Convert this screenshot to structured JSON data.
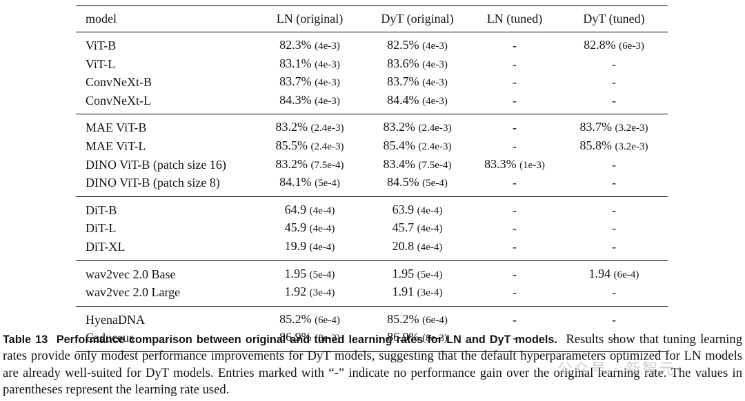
{
  "table": {
    "headers": [
      "model",
      "LN (original)",
      "DyT (original)",
      "LN (tuned)",
      "DyT (tuned)"
    ],
    "groups": [
      {
        "rows": [
          {
            "model": "ViT-B",
            "ln_orig": {
              "v": "82.3%",
              "lr": "(4e-3)"
            },
            "dyt_orig": {
              "v": "82.5%",
              "lr": "(4e-3)"
            },
            "ln_tuned": {
              "v": "-",
              "lr": ""
            },
            "dyt_tuned": {
              "v": "82.8%",
              "lr": "(6e-3)"
            }
          },
          {
            "model": "ViT-L",
            "ln_orig": {
              "v": "83.1%",
              "lr": "(4e-3)"
            },
            "dyt_orig": {
              "v": "83.6%",
              "lr": "(4e-3)"
            },
            "ln_tuned": {
              "v": "-",
              "lr": ""
            },
            "dyt_tuned": {
              "v": "-",
              "lr": ""
            }
          },
          {
            "model": "ConvNeXt-B",
            "ln_orig": {
              "v": "83.7%",
              "lr": "(4e-3)"
            },
            "dyt_orig": {
              "v": "83.7%",
              "lr": "(4e-3)"
            },
            "ln_tuned": {
              "v": "-",
              "lr": ""
            },
            "dyt_tuned": {
              "v": "-",
              "lr": ""
            }
          },
          {
            "model": "ConvNeXt-L",
            "ln_orig": {
              "v": "84.3%",
              "lr": "(4e-3)"
            },
            "dyt_orig": {
              "v": "84.4%",
              "lr": "(4e-3)"
            },
            "ln_tuned": {
              "v": "-",
              "lr": ""
            },
            "dyt_tuned": {
              "v": "-",
              "lr": ""
            }
          }
        ]
      },
      {
        "rows": [
          {
            "model": "MAE ViT-B",
            "ln_orig": {
              "v": "83.2%",
              "lr": "(2.4e-3)"
            },
            "dyt_orig": {
              "v": "83.2%",
              "lr": "(2.4e-3)"
            },
            "ln_tuned": {
              "v": "-",
              "lr": ""
            },
            "dyt_tuned": {
              "v": "83.7%",
              "lr": "(3.2e-3)"
            }
          },
          {
            "model": "MAE ViT-L",
            "ln_orig": {
              "v": "85.5%",
              "lr": "(2.4e-3)"
            },
            "dyt_orig": {
              "v": "85.4%",
              "lr": "(2.4e-3)"
            },
            "ln_tuned": {
              "v": "-",
              "lr": ""
            },
            "dyt_tuned": {
              "v": "85.8%",
              "lr": "(3.2e-3)"
            }
          },
          {
            "model": "DINO ViT-B (patch size 16)",
            "ln_orig": {
              "v": "83.2%",
              "lr": "(7.5e-4)"
            },
            "dyt_orig": {
              "v": "83.4%",
              "lr": "(7.5e-4)"
            },
            "ln_tuned": {
              "v": "83.3%",
              "lr": "(1e-3)"
            },
            "dyt_tuned": {
              "v": "-",
              "lr": ""
            }
          },
          {
            "model": "DINO ViT-B (patch size 8)",
            "ln_orig": {
              "v": "84.1%",
              "lr": "(5e-4)"
            },
            "dyt_orig": {
              "v": "84.5%",
              "lr": "(5e-4)"
            },
            "ln_tuned": {
              "v": "-",
              "lr": ""
            },
            "dyt_tuned": {
              "v": "-",
              "lr": ""
            }
          }
        ]
      },
      {
        "rows": [
          {
            "model": "DiT-B",
            "ln_orig": {
              "v": "64.9",
              "lr": "(4e-4)"
            },
            "dyt_orig": {
              "v": "63.9",
              "lr": "(4e-4)"
            },
            "ln_tuned": {
              "v": "-",
              "lr": ""
            },
            "dyt_tuned": {
              "v": "-",
              "lr": ""
            }
          },
          {
            "model": "DiT-L",
            "ln_orig": {
              "v": "45.9",
              "lr": "(4e-4)"
            },
            "dyt_orig": {
              "v": "45.7",
              "lr": "(4e-4)"
            },
            "ln_tuned": {
              "v": "-",
              "lr": ""
            },
            "dyt_tuned": {
              "v": "-",
              "lr": ""
            }
          },
          {
            "model": "DiT-XL",
            "ln_orig": {
              "v": "19.9",
              "lr": "(4e-4)"
            },
            "dyt_orig": {
              "v": "20.8",
              "lr": "(4e-4)"
            },
            "ln_tuned": {
              "v": "-",
              "lr": ""
            },
            "dyt_tuned": {
              "v": "-",
              "lr": ""
            }
          }
        ]
      },
      {
        "rows": [
          {
            "model": "wav2vec 2.0 Base",
            "ln_orig": {
              "v": "1.95",
              "lr": "(5e-4)"
            },
            "dyt_orig": {
              "v": "1.95",
              "lr": "(5e-4)"
            },
            "ln_tuned": {
              "v": "-",
              "lr": ""
            },
            "dyt_tuned": {
              "v": "1.94",
              "lr": "(6e-4)"
            }
          },
          {
            "model": "wav2vec 2.0 Large",
            "ln_orig": {
              "v": "1.92",
              "lr": "(3e-4)"
            },
            "dyt_orig": {
              "v": "1.91",
              "lr": "(3e-4)"
            },
            "ln_tuned": {
              "v": "-",
              "lr": ""
            },
            "dyt_tuned": {
              "v": "-",
              "lr": ""
            }
          }
        ]
      },
      {
        "rows": [
          {
            "model": "HyenaDNA",
            "ln_orig": {
              "v": "85.2%",
              "lr": "(6e-4)"
            },
            "dyt_orig": {
              "v": "85.2%",
              "lr": "(6e-4)"
            },
            "ln_tuned": {
              "v": "-",
              "lr": ""
            },
            "dyt_tuned": {
              "v": "-",
              "lr": ""
            }
          },
          {
            "model": "Caduceus",
            "ln_orig": {
              "v": "86.9%",
              "lr": "(8e-3)"
            },
            "dyt_orig": {
              "v": "86.9%",
              "lr": "(8e-3)"
            },
            "ln_tuned": {
              "v": "-",
              "lr": ""
            },
            "dyt_tuned": {
              "v": "-",
              "lr": ""
            }
          }
        ]
      }
    ]
  },
  "caption": {
    "label": "Table 13",
    "title": "Performance comparison between original and tuned learning rates for LN and DyT models.",
    "body": "Results show that tuning learning rates provide only modest performance improvements for DyT models, suggesting that the default hyperparameters optimized for LN models are already well-suited for DyT models. Entries marked with “-” indicate no performance gain over the original learning rate. The values in parentheses represent the learning rate used."
  },
  "watermark": {
    "text": "公众号 · 新智元"
  }
}
